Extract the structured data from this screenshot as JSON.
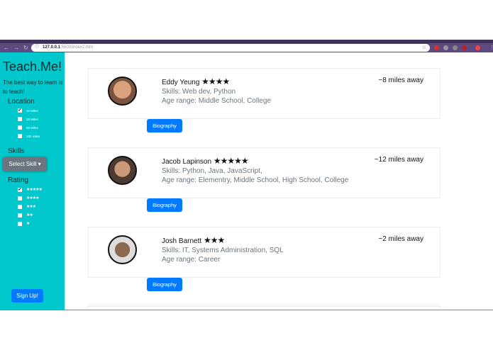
{
  "browser": {
    "url_host": "127.0.0.1",
    "url_rest": ":5500/index2.htm"
  },
  "sidebar": {
    "brand": "Teach.Me!",
    "tagline": "The best way to learn is to teach!",
    "location_heading": "Location",
    "locations": [
      {
        "label": "10 Miles",
        "checked": true
      },
      {
        "label": "25 Miles",
        "checked": false
      },
      {
        "label": "50 Miles",
        "checked": false
      },
      {
        "label": "100 miles",
        "checked": false
      }
    ],
    "skills_heading": "Skills",
    "select_skill": "Select Skill",
    "rating_heading": "Rating",
    "ratings": [
      {
        "label": "★★★★★",
        "checked": true
      },
      {
        "label": "★★★★",
        "checked": false
      },
      {
        "label": "★★★",
        "checked": false
      },
      {
        "label": "★★",
        "checked": false
      },
      {
        "label": "★",
        "checked": false
      }
    ],
    "signup": "Sign Up!"
  },
  "teachers": [
    {
      "name": "Eddy Yeung",
      "stars": "★★★★",
      "skills": "Skills: Web dev, Python",
      "age": "Age range: Middle School, College",
      "distance": "~8 miles away",
      "bio": "Biography"
    },
    {
      "name": "Jacob Lapinson",
      "stars": "★★★★★",
      "skills": "Skills: Python, Java, JavaScript,",
      "age": "Age range: Elementry, Middle School, High School, College",
      "distance": "~12 miles away",
      "bio": "Biography"
    },
    {
      "name": "Josh Barnett",
      "stars": "★★★",
      "skills": "Skills: IT, Systems Administration, SQL",
      "age": "Age range: Career",
      "distance": "~2 miles away",
      "bio": "Biography"
    }
  ]
}
